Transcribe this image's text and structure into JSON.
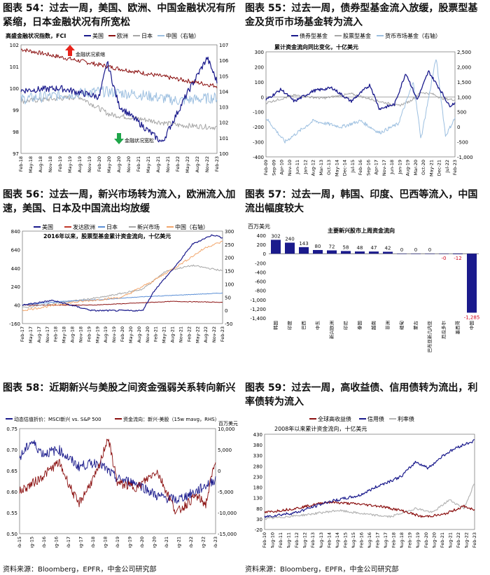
{
  "colors": {
    "navy": "#1a1a8c",
    "red": "#8b1010",
    "gray": "#a6a6a6",
    "lightblue": "#9cbfe0",
    "blue": "#5b8fd6",
    "orange": "#f2a66c"
  },
  "p54": {
    "title": "图表 54：过去一周，美国、欧洲、中国金融状况有所紧缩，日本金融状况有所宽松",
    "subtitle": "高盛金融状况指数，FCI",
    "legend": [
      "美国",
      "欧洲",
      "日本",
      "中国（右轴）"
    ],
    "annot_tight": "金融状况紧缩",
    "annot_loose": "金融状况宽松",
    "chart_data": {
      "type": "line",
      "left_ticks": [
        "102",
        "101",
        "100",
        "99",
        "98",
        "97"
      ],
      "right_ticks": [
        "107",
        "106",
        "105",
        "104",
        "103",
        "102",
        "101",
        "100"
      ],
      "x_ticks": [
        "Feb-18",
        "May-18",
        "Aug-18",
        "Nov-18",
        "Feb-19",
        "May-19",
        "Aug-19",
        "Nov-19",
        "Feb-20",
        "May-20",
        "Aug-20",
        "Nov-20",
        "Feb-21",
        "May-21",
        "Aug-21",
        "Nov-21",
        "Feb-22",
        "May-22",
        "Aug-22",
        "Nov-22",
        "Feb-23"
      ]
    }
  },
  "p55": {
    "title": "图表 55：过去一周，债券型基金流入放缓，股票型基金及货币市场基金转为流入",
    "subtitle": "累计资金流向同比变化，十亿美元",
    "legend": [
      "债券型基金",
      "股票型基金",
      "货币市场基金（右轴）"
    ],
    "chart_data": {
      "type": "line",
      "left_ticks": [
        "300",
        "200",
        "100",
        "0",
        "-100",
        "-200",
        "-300",
        "-400"
      ],
      "right_ticks": [
        "2,500",
        "2,000",
        "1,500",
        "1,000",
        "500",
        "0",
        "-500",
        "-1,000"
      ],
      "x_ticks": [
        "Feb-09",
        "Sep-09",
        "Apr-10",
        "Nov-10",
        "Jun-11",
        "Jan-12",
        "Aug-12",
        "Mar-13",
        "Oct-13",
        "May-14",
        "Dec-14",
        "Jul-15",
        "Feb-16",
        "Sep-16",
        "Apr-17",
        "Nov-17",
        "Jun-18",
        "Jan-19",
        "Aug-19",
        "Mar-20",
        "Oct-20",
        "May-21",
        "Dec-21",
        "Jul-22",
        "Feb-23"
      ]
    }
  },
  "p56": {
    "title": "图表 56：过去一周，新兴市场转为流入，欧洲流入加速，美国、日本及中国流出均放缓",
    "subtitle": "2016年以来，股票型基金累计资金流向，十亿美元",
    "legend": [
      "美国",
      "发达欧洲",
      "日本",
      "新兴市场",
      "中国（右轴）"
    ],
    "chart_data": {
      "type": "line",
      "left_ticks": [
        "840",
        "640",
        "440",
        "240",
        "40",
        "-160"
      ],
      "right_ticks": [
        "300",
        "250",
        "200",
        "150",
        "100",
        "50",
        "0",
        "-50"
      ],
      "x_ticks": [
        "Feb-17",
        "May-17",
        "Aug-17",
        "Nov-17",
        "Feb-18",
        "May-18",
        "Aug-18",
        "Nov-18",
        "Feb-19",
        "May-19",
        "Aug-19",
        "Nov-19",
        "Feb-20",
        "May-20",
        "Aug-20",
        "Nov-20",
        "Feb-21",
        "May-21",
        "Aug-21",
        "Nov-21",
        "Feb-22",
        "May-22",
        "Aug-22",
        "Nov-22",
        "Feb-23"
      ]
    }
  },
  "p57": {
    "title": "图表 57：过去一周，韩国、印度、巴西等流入，中国流出幅度较大",
    "unit": "百万美元",
    "subtitle": "主要新兴股市上周资金流向",
    "chart_data": {
      "type": "bar",
      "categories": [
        "韩国",
        "印度",
        "巴西",
        "中东",
        "新兴欧洲",
        "印尼",
        "泰国",
        "越南",
        "非洲",
        "缅甸",
        "蒙古",
        "巴布亚新几内亚",
        "厄瓜多尔",
        "墨西哥",
        "中国"
      ],
      "values": [
        302,
        240,
        143,
        80,
        72,
        58,
        48,
        47,
        42,
        0,
        0,
        0,
        0,
        -12,
        -1285
      ],
      "labels": [
        "302",
        "240",
        "143",
        "80",
        "72",
        "58",
        "48",
        "47",
        "42",
        "0",
        "0",
        "0",
        "-0",
        "-12",
        "-1,285"
      ],
      "y_ticks": [
        "400",
        "200",
        "0",
        "-200",
        "-400",
        "-600",
        "-800",
        "-1,000",
        "-1,200",
        "-1,400"
      ],
      "ylim": [
        -1400,
        400
      ]
    }
  },
  "p58": {
    "title": "图表 58：近期新兴与美股之间资金强弱关系转向新兴",
    "legend": [
      "动态估值折价：MSCI新兴 vs. S&P 500",
      "资金流向：新兴-美股（15w mavg，RHS）"
    ],
    "unit": "百万美元",
    "chart_data": {
      "type": "line",
      "left_ticks": [
        "0.75",
        "0.70",
        "0.65",
        "0.60",
        "0.55",
        "0.50"
      ],
      "right_ticks": [
        "10,000",
        "5,000",
        "0",
        "-5,000",
        "-10,000",
        "-15,000"
      ],
      "x_ticks": [
        "Feb-15",
        "Aug-15",
        "Feb-16",
        "Aug-16",
        "Feb-17",
        "Aug-17",
        "Feb-18",
        "Aug-18",
        "Feb-19",
        "Aug-19",
        "Feb-20",
        "Aug-20",
        "Feb-21",
        "Aug-21",
        "Feb-22",
        "Aug-22",
        "Feb-23"
      ]
    }
  },
  "p59": {
    "title": "图表 59：过去一周，高收益债、信用债转为流出，利率债转为流入",
    "subtitle": "2008年以来累计资金流向，十亿美元",
    "legend": [
      "全球高收益债",
      "信用债",
      "利率债"
    ],
    "chart_data": {
      "type": "line",
      "y_ticks": [
        "430",
        "380",
        "330",
        "280",
        "230",
        "180",
        "130",
        "80",
        "30",
        "-20"
      ],
      "x_ticks": [
        "Feb-10",
        "Aug-10",
        "Feb-11",
        "Aug-11",
        "Feb-12",
        "Aug-12",
        "Feb-13",
        "Aug-13",
        "Feb-14",
        "Aug-14",
        "Feb-15",
        "Aug-15",
        "Feb-16",
        "Aug-16",
        "Feb-17",
        "Aug-17",
        "Feb-18",
        "Aug-18",
        "Feb-19",
        "Aug-19",
        "Feb-20",
        "Aug-20",
        "Feb-21",
        "Aug-21",
        "Feb-22",
        "Aug-22",
        "Feb-23"
      ]
    }
  },
  "source_left": "资料来源：Bloomberg，EPFR，中金公司研究部",
  "source_right": "资料来源：Bloomberg，EPFR，中金公司研究部"
}
